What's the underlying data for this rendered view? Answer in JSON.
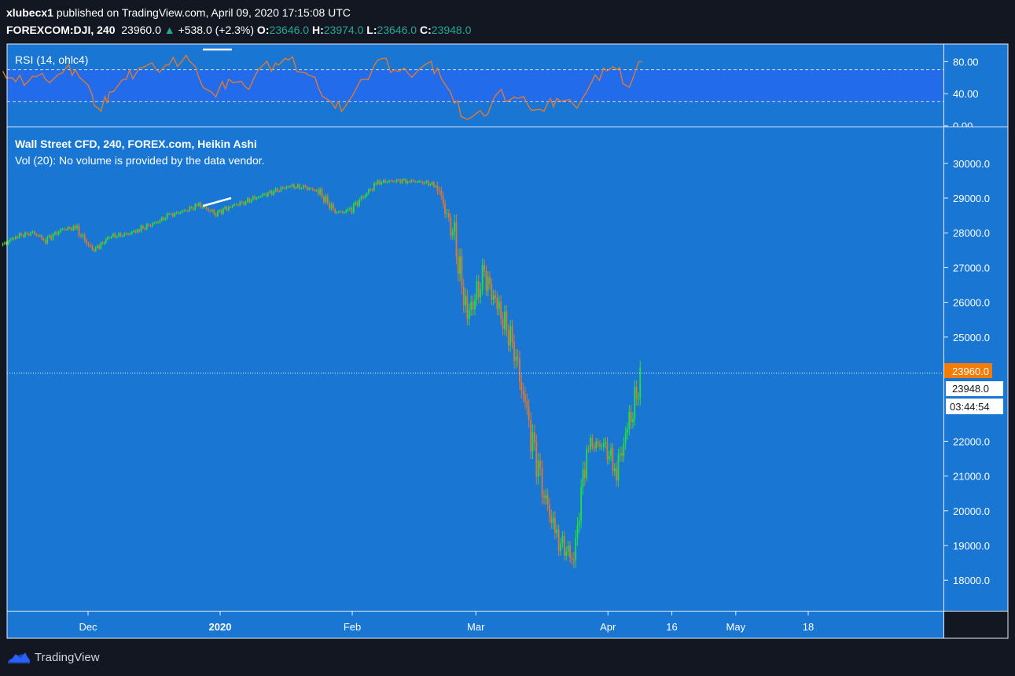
{
  "header": {
    "author": "xlubecx1",
    "published": "published on TradingView.com, April 09, 2020 17:15:08 UTC",
    "symbol": "FOREXCOM:DJI, 240",
    "last": "23960.0",
    "change_arrow": "▲",
    "change": "+538.0 (+2.3%)",
    "o_label": "O:",
    "o_val": "23646.0",
    "h_label": "H:",
    "h_val": "23974.0",
    "l_label": "L:",
    "l_val": "23646.0",
    "c_label": "C:",
    "c_val": "23948.0"
  },
  "main_pane": {
    "title": "Wall Street CFD, 240, FOREX.com, Heikin Ashi",
    "vol_note": "Vol (20): No volume is provided by the data vendor.",
    "price_label": "23960.0",
    "close_label": "23948.0",
    "countdown": "03:44:54"
  },
  "rsi_pane": {
    "title": "RSI (14, ohlc4)"
  },
  "footer": {
    "brand": "TradingView"
  },
  "colors": {
    "background": "#131722",
    "pane": "#1976d2",
    "rsi_band": "#2962ff",
    "up_candle": "#26e03a",
    "down_candle": "#e2782d",
    "rsi_line": "#e2782d",
    "price_badge": "#f57c00"
  },
  "chart_data": [
    {
      "type": "line",
      "title": "RSI (14, ohlc4)",
      "ylim": [
        0,
        100
      ],
      "y_ticks": [
        "80.00",
        "40.00",
        "0.00"
      ],
      "band_levels": [
        70,
        30
      ],
      "series": [
        {
          "x": [
            "2019-11-11",
            "2019-11-14",
            "2019-11-18",
            "2019-11-21",
            "2019-11-25",
            "2019-11-28",
            "2019-12-02",
            "2019-12-04",
            "2019-12-06",
            "2019-12-10",
            "2019-12-13",
            "2019-12-17",
            "2019-12-20",
            "2019-12-24",
            "2019-12-27",
            "2019-12-31",
            "2020-01-03",
            "2020-01-07",
            "2020-01-10",
            "2020-01-14",
            "2020-01-17",
            "2020-01-21",
            "2020-01-24",
            "2020-01-28",
            "2020-01-31",
            "2020-02-04",
            "2020-02-07",
            "2020-02-11",
            "2020-02-14",
            "2020-02-18",
            "2020-02-21",
            "2020-02-25",
            "2020-02-28",
            "2020-03-03",
            "2020-03-06",
            "2020-03-10",
            "2020-03-13",
            "2020-03-17",
            "2020-03-20",
            "2020-03-24",
            "2020-03-27",
            "2020-03-31",
            "2020-04-03",
            "2020-04-06",
            "2020-04-09"
          ],
          "values": [
            68,
            55,
            62,
            58,
            66,
            70,
            38,
            18,
            42,
            58,
            72,
            70,
            76,
            88,
            60,
            36,
            58,
            48,
            70,
            78,
            82,
            66,
            48,
            22,
            30,
            58,
            82,
            70,
            66,
            76,
            72,
            28,
            8,
            12,
            40,
            36,
            28,
            18,
            34,
            26,
            42,
            72,
            70,
            48,
            80
          ]
        }
      ]
    },
    {
      "type": "candlestick",
      "title": "Wall Street CFD, 240, FOREX.com, Heikin Ashi",
      "ylim": [
        17300,
        30600
      ],
      "y_ticks": [
        "30000.0",
        "29000.0",
        "28000.0",
        "27000.0",
        "26000.0",
        "25000.0",
        "22000.0",
        "21000.0",
        "20000.0",
        "19000.0",
        "18000.0"
      ],
      "x_ticks": [
        "Dec",
        "2020",
        "Feb",
        "Mar",
        "Apr",
        "16",
        "May",
        "18"
      ],
      "last_price": 23960.0,
      "close": 23948.0,
      "series": [
        {
          "name": "",
          "x": [
            "2019-11-11",
            "2019-11-14",
            "2019-11-18",
            "2019-11-21",
            "2019-11-25",
            "2019-11-28",
            "2019-12-02",
            "2019-12-04",
            "2019-12-06",
            "2019-12-10",
            "2019-12-13",
            "2019-12-17",
            "2019-12-20",
            "2019-12-24",
            "2019-12-27",
            "2019-12-31",
            "2020-01-03",
            "2020-01-07",
            "2020-01-10",
            "2020-01-14",
            "2020-01-17",
            "2020-01-21",
            "2020-01-24",
            "2020-01-28",
            "2020-01-31",
            "2020-02-04",
            "2020-02-07",
            "2020-02-11",
            "2020-02-14",
            "2020-02-18",
            "2020-02-21",
            "2020-02-25",
            "2020-02-28",
            "2020-03-03",
            "2020-03-06",
            "2020-03-10",
            "2020-03-13",
            "2020-03-17",
            "2020-03-20",
            "2020-03-24",
            "2020-03-27",
            "2020-03-31",
            "2020-04-03",
            "2020-04-06",
            "2020-04-09"
          ],
          "values": [
            27650,
            27900,
            28000,
            27800,
            28100,
            28150,
            27500,
            27650,
            27900,
            27950,
            28100,
            28300,
            28500,
            28650,
            28800,
            28550,
            28750,
            28900,
            29050,
            29200,
            29350,
            29300,
            29200,
            28600,
            28600,
            29100,
            29450,
            29500,
            29500,
            29450,
            29350,
            27800,
            25600,
            26800,
            25900,
            24700,
            22700,
            20500,
            19200,
            18600,
            21900,
            21900,
            21200,
            22500,
            23960
          ]
        }
      ]
    }
  ]
}
